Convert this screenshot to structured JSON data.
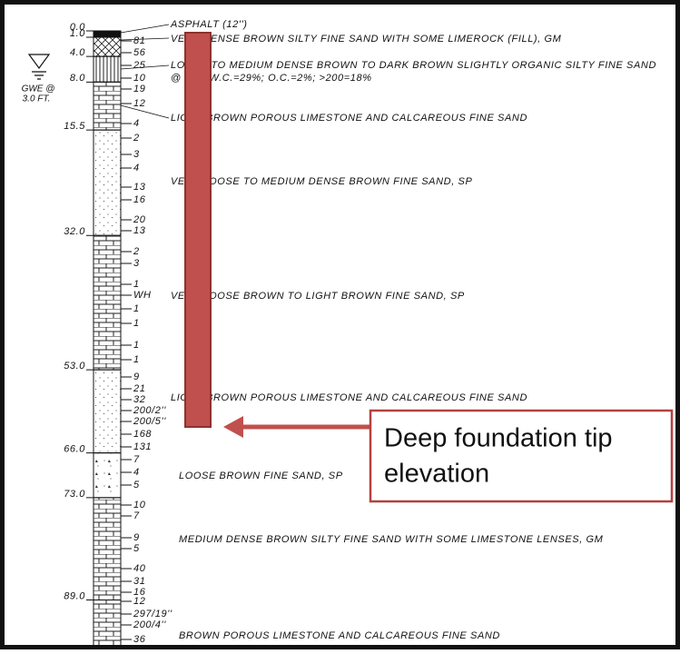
{
  "groundwater": {
    "line1": "GWE @",
    "line2": "3.0 FT."
  },
  "depths": [
    "0.0",
    "1.0",
    "4.0",
    "8.0",
    "15.5",
    "32.0",
    "53.0",
    "66.0",
    "73.0",
    "89.0"
  ],
  "blow_counts": [
    "81",
    "56",
    "25",
    "10",
    "19",
    "12",
    "4",
    "2",
    "3",
    "4",
    "13",
    "16",
    "20",
    "13",
    "2",
    "3",
    "1",
    "WH",
    "1",
    "1",
    "1",
    "1",
    "9",
    "21",
    "32",
    "200/2''",
    "200/5''",
    "168",
    "131",
    "7",
    "4",
    "5",
    "10",
    "7",
    "9",
    "5",
    "40",
    "31",
    "16",
    "12",
    "297/19''",
    "200/4''",
    "36"
  ],
  "descriptions": [
    "ASPHALT (12'')",
    "VERY DENSE BROWN SILTY FINE SAND WITH SOME LIMEROCK (FILL), GM",
    "LOOSE TO MEDIUM DENSE BROWN TO DARK BROWN SLIGHTLY ORGANIC SILTY FINE SAND",
    "@ 7.5': W.C.=29%; O.C.=2%; >200=18%",
    "LIGHT BROWN POROUS LIMESTONE AND CALCAREOUS FINE SAND",
    "VERY LOOSE TO MEDIUM DENSE BROWN FINE SAND, SP",
    "VERY LOOSE BROWN TO LIGHT BROWN FINE SAND, SP",
    "LIGHT BROWN POROUS LIMESTONE AND CALCAREOUS FINE SAND",
    "LOOSE BROWN FINE SAND, SP",
    "MEDIUM DENSE BROWN SILTY FINE SAND WITH SOME LIMESTONE LENSES, GM",
    "BROWN POROUS LIMESTONE AND CALCAREOUS FINE SAND"
  ],
  "annotation": {
    "line1": "Deep foundation tip",
    "line2": "elevation"
  }
}
